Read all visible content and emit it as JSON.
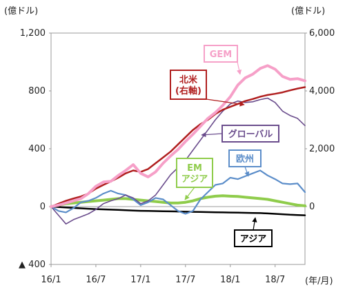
{
  "chart_data": {
    "type": "line",
    "left_unit": "(億ドル)",
    "right_unit": "(億ドル)",
    "x_unit": "(年/月)",
    "x_ticks": [
      "16/1",
      "16/7",
      "17/1",
      "17/7",
      "18/1",
      "18/7"
    ],
    "left_axis": {
      "ylim": [
        -400,
        1200
      ],
      "ticks": [
        -400,
        0,
        400,
        800,
        1200
      ],
      "tick_labels": [
        "▲ 400",
        "0",
        "400",
        "800",
        "1,200"
      ]
    },
    "right_axis": {
      "ylim": [
        -2000,
        6000
      ],
      "ticks": [
        0,
        2000,
        4000,
        6000
      ],
      "tick_labels": [
        "0",
        "2,000",
        "4,000",
        "6,000"
      ]
    },
    "x_range": [
      0,
      34
    ],
    "series": [
      {
        "name": "GEM",
        "axis": "left",
        "color": "#f6a0c8",
        "x": [
          0,
          1,
          2,
          3,
          4,
          5,
          6,
          7,
          8,
          9,
          10,
          11,
          12,
          13,
          14,
          15,
          16,
          17,
          18,
          19,
          20,
          21,
          22,
          23,
          24,
          25,
          26,
          27,
          28,
          29,
          30,
          31,
          32,
          33,
          34
        ],
        "y": [
          0,
          10,
          25,
          40,
          55,
          90,
          140,
          170,
          175,
          215,
          250,
          290,
          230,
          205,
          240,
          300,
          350,
          395,
          450,
          500,
          555,
          610,
          650,
          700,
          760,
          840,
          890,
          915,
          955,
          975,
          950,
          900,
          880,
          885,
          870
        ]
      },
      {
        "name": "北米\n(右軸)",
        "axis": "right",
        "color": "#b01e1e",
        "x": [
          0,
          1,
          2,
          3,
          4,
          5,
          6,
          7,
          8,
          9,
          10,
          11,
          12,
          13,
          14,
          15,
          16,
          17,
          18,
          19,
          20,
          21,
          22,
          23,
          24,
          25,
          26,
          27,
          28,
          29,
          30,
          31,
          32,
          33,
          34
        ],
        "y": [
          0,
          100,
          200,
          280,
          350,
          450,
          620,
          750,
          870,
          1000,
          1150,
          1250,
          1200,
          1300,
          1500,
          1700,
          1900,
          2150,
          2400,
          2650,
          2850,
          3000,
          3200,
          3350,
          3450,
          3550,
          3650,
          3720,
          3800,
          3860,
          3900,
          3950,
          4020,
          4080,
          4130
        ]
      },
      {
        "name": "グローバル",
        "axis": "left",
        "color": "#6a4c8c",
        "x": [
          0,
          1,
          2,
          3,
          4,
          5,
          6,
          7,
          8,
          9,
          10,
          11,
          12,
          13,
          14,
          15,
          16,
          17,
          18,
          19,
          20,
          21,
          22,
          23,
          24,
          25,
          26,
          27,
          28,
          29,
          30,
          31,
          32,
          33,
          34
        ],
        "y": [
          0,
          -60,
          -120,
          -90,
          -70,
          -50,
          -20,
          20,
          40,
          55,
          80,
          60,
          20,
          40,
          80,
          150,
          220,
          270,
          320,
          390,
          460,
          530,
          600,
          660,
          710,
          730,
          720,
          725,
          740,
          750,
          720,
          660,
          630,
          610,
          560
        ]
      },
      {
        "name": "欧州",
        "axis": "left",
        "color": "#5b8dc9",
        "x": [
          0,
          1,
          2,
          3,
          4,
          5,
          6,
          7,
          8,
          9,
          10,
          11,
          12,
          13,
          14,
          15,
          16,
          17,
          18,
          19,
          20,
          21,
          22,
          23,
          24,
          25,
          26,
          27,
          28,
          29,
          30,
          31,
          32,
          33,
          34
        ],
        "y": [
          0,
          -30,
          -40,
          -10,
          30,
          40,
          60,
          90,
          110,
          90,
          80,
          50,
          10,
          30,
          60,
          50,
          10,
          -30,
          -50,
          -30,
          50,
          100,
          150,
          160,
          200,
          190,
          210,
          230,
          250,
          215,
          190,
          160,
          155,
          160,
          100
        ]
      },
      {
        "name": "EM\nアジア",
        "axis": "left",
        "color": "#8fcc4b",
        "x": [
          0,
          1,
          2,
          3,
          4,
          5,
          6,
          7,
          8,
          9,
          10,
          11,
          12,
          13,
          14,
          15,
          16,
          17,
          18,
          19,
          20,
          21,
          22,
          23,
          24,
          25,
          26,
          27,
          28,
          29,
          30,
          31,
          32,
          33,
          34
        ],
        "y": [
          0,
          10,
          20,
          25,
          30,
          35,
          40,
          45,
          50,
          55,
          55,
          50,
          45,
          40,
          35,
          30,
          25,
          25,
          30,
          40,
          55,
          65,
          72,
          75,
          72,
          70,
          65,
          60,
          55,
          50,
          40,
          30,
          20,
          10,
          5
        ]
      },
      {
        "name": "アジア",
        "axis": "left",
        "color": "#000000",
        "x": [
          0,
          1,
          2,
          3,
          4,
          5,
          6,
          7,
          8,
          9,
          10,
          11,
          12,
          13,
          14,
          15,
          16,
          17,
          18,
          19,
          20,
          21,
          22,
          23,
          24,
          25,
          26,
          27,
          28,
          29,
          30,
          31,
          32,
          33,
          34
        ],
        "y": [
          0,
          -3,
          -6,
          -9,
          -12,
          -15,
          -17,
          -19,
          -21,
          -23,
          -25,
          -27,
          -29,
          -30,
          -31,
          -32,
          -33,
          -34,
          -35,
          -36,
          -37,
          -38,
          -39,
          -40,
          -41,
          -42,
          -43,
          -44,
          -45,
          -47,
          -50,
          -53,
          -56,
          -58,
          -60
        ]
      }
    ],
    "labels": [
      {
        "series": 0,
        "text": "GEM",
        "style": "pink-box"
      },
      {
        "series": 1,
        "text": "北米\n(右軸)",
        "style": "red-box"
      },
      {
        "series": 2,
        "text": "グローバル",
        "style": "purple-box"
      },
      {
        "series": 3,
        "text": "欧州",
        "style": "blue-box"
      },
      {
        "series": 4,
        "text": "EM\nアジア",
        "style": "green-box"
      },
      {
        "series": 5,
        "text": "アジア",
        "style": "black-box"
      }
    ]
  }
}
